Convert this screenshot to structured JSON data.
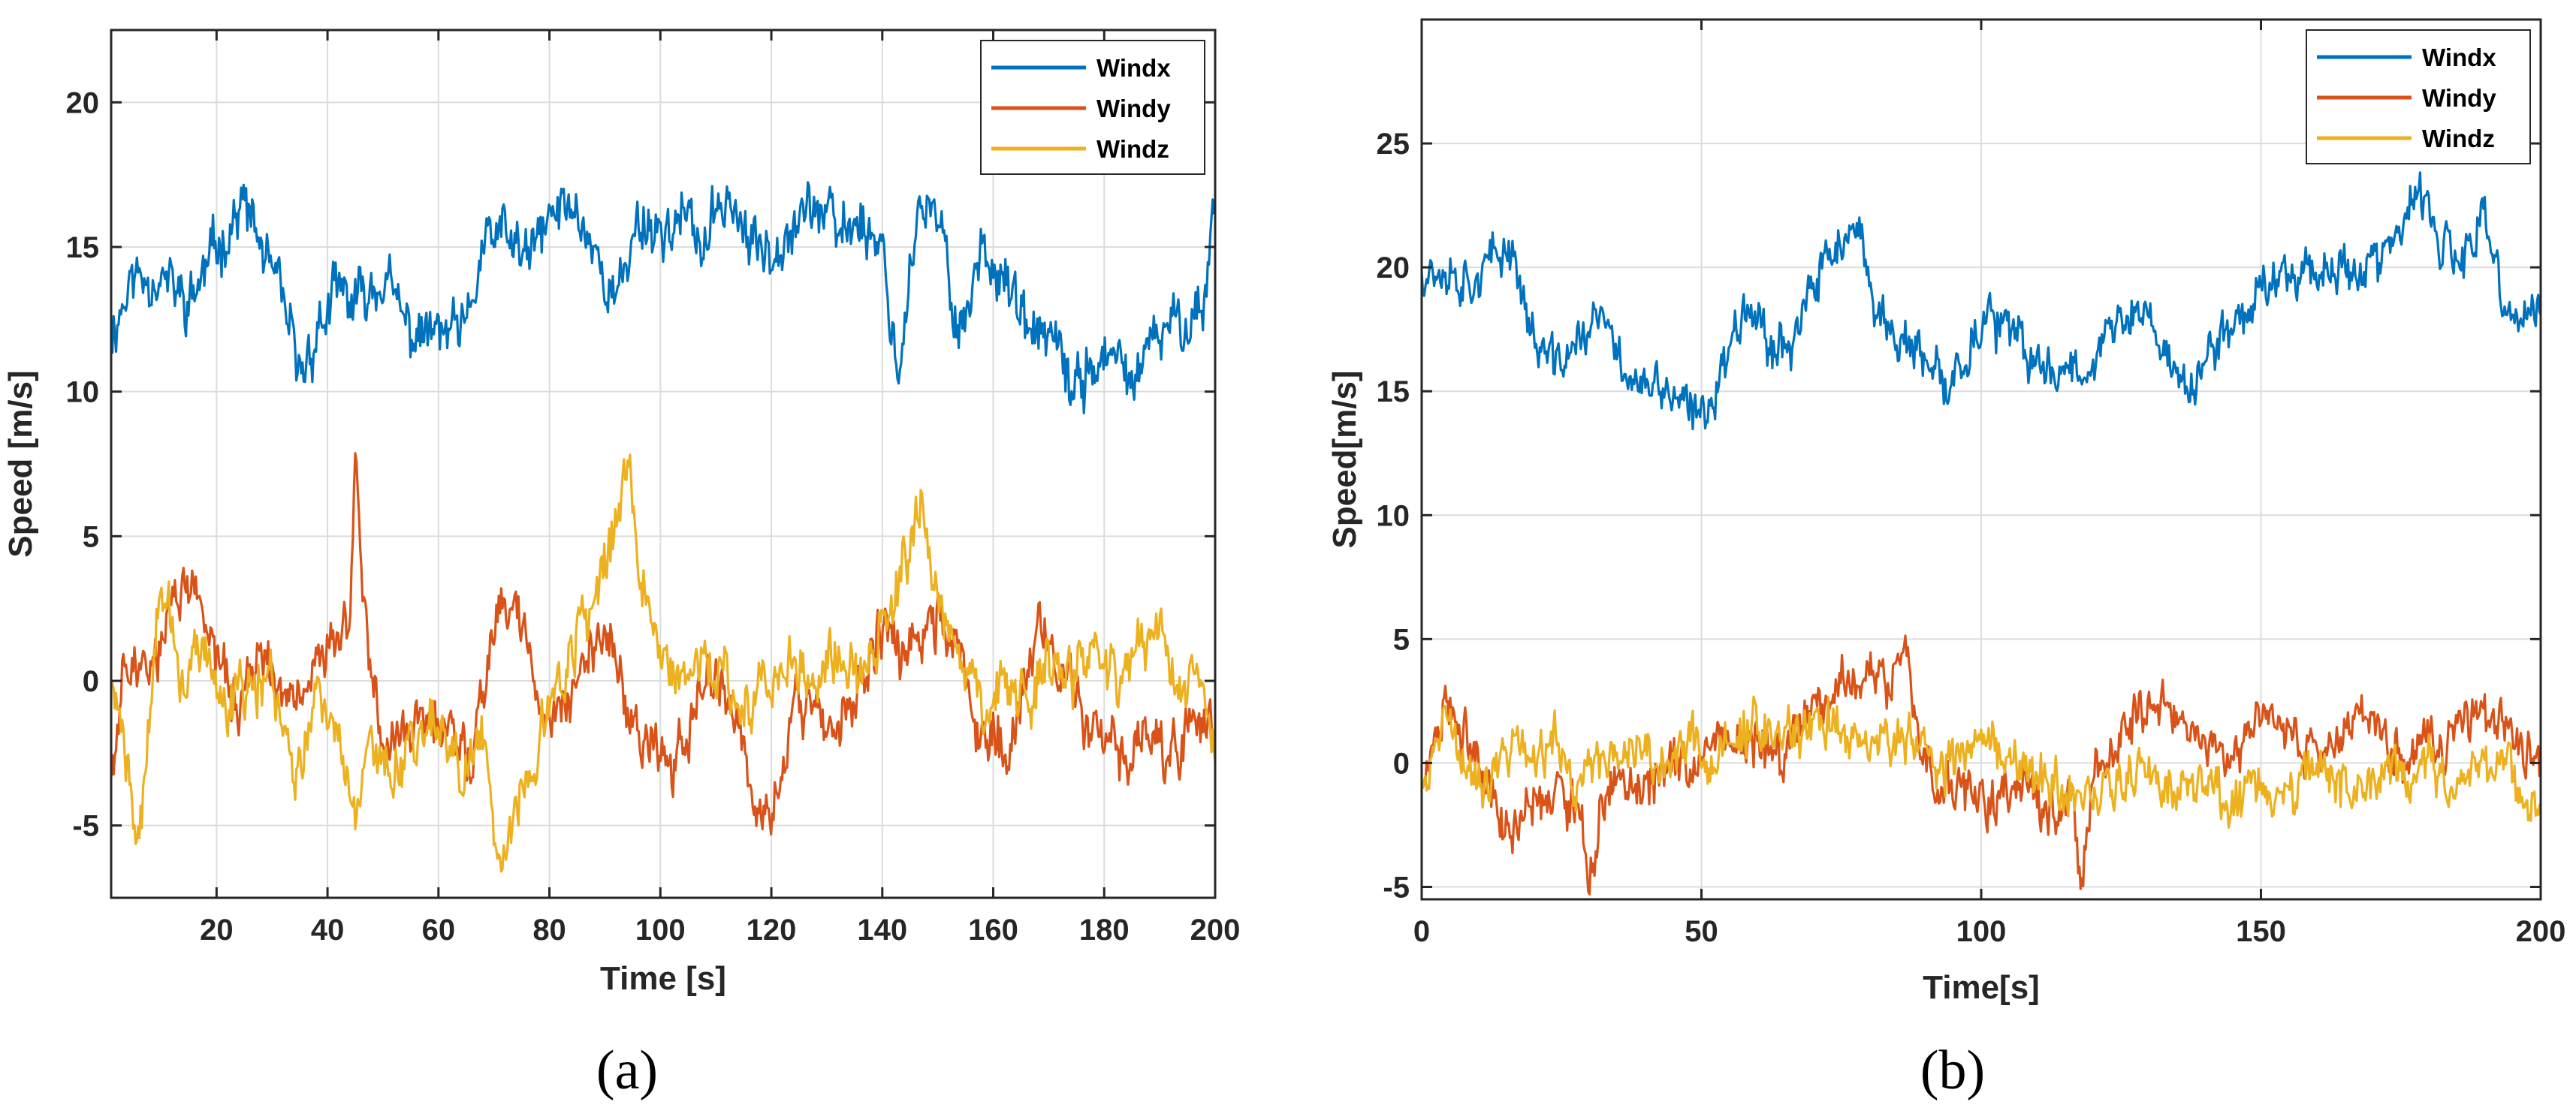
{
  "chart_data": [
    {
      "type": "line",
      "caption": "(a)",
      "xlabel": "Time [s]",
      "ylabel": "Speed [m/s]",
      "xlim": [
        1,
        200
      ],
      "ylim": [
        -7.5,
        22.5
      ],
      "xticks": [
        20,
        40,
        60,
        80,
        100,
        120,
        140,
        160,
        180,
        200
      ],
      "xtick_labels": [
        "20",
        "40",
        "60",
        "80",
        "100",
        "120",
        "140",
        "160",
        "180",
        "200"
      ],
      "yticks": [
        -5,
        0,
        5,
        10,
        15,
        20
      ],
      "ytick_labels": [
        "-5",
        "0",
        "5",
        "10",
        "15",
        "20"
      ],
      "grid": true,
      "legend_position": "top-right",
      "series": [
        {
          "name": "Windx",
          "color": "#0072BD",
          "x": [
            1,
            5,
            10,
            15,
            20,
            25,
            28,
            32,
            35,
            38,
            42,
            45,
            50,
            55,
            60,
            65,
            68,
            72,
            76,
            80,
            84,
            88,
            92,
            96,
            100,
            104,
            108,
            112,
            116,
            120,
            124,
            128,
            132,
            136,
            140,
            143,
            146,
            150,
            154,
            158,
            162,
            166,
            170,
            174,
            178,
            182,
            186,
            190,
            194,
            198,
            200
          ],
          "values": [
            12,
            14,
            14,
            13,
            15,
            16.5,
            15,
            13,
            10.5,
            12,
            13.5,
            13,
            14,
            12,
            12,
            12,
            15,
            15.5,
            14.5,
            16,
            16.5,
            15,
            13,
            16,
            15.5,
            16,
            15,
            17,
            15,
            15,
            16,
            16.5,
            15.5,
            16,
            15,
            10.5,
            16,
            16,
            12,
            15,
            14,
            12,
            12,
            10,
            11,
            11,
            10.5,
            12,
            12.5,
            13,
            17
          ]
        },
        {
          "name": "Windy",
          "color": "#D95319",
          "x": [
            1,
            4,
            8,
            12,
            16,
            20,
            24,
            28,
            32,
            36,
            40,
            44,
            45,
            47,
            50,
            54,
            58,
            62,
            66,
            70,
            74,
            78,
            82,
            86,
            90,
            94,
            98,
            102,
            106,
            110,
            114,
            117,
            120,
            124,
            128,
            132,
            136,
            140,
            144,
            148,
            152,
            156,
            160,
            164,
            168,
            172,
            176,
            180,
            184,
            188,
            192,
            196,
            200
          ],
          "values": [
            -3,
            1,
            0,
            3,
            3,
            1,
            -1,
            1,
            -1,
            0,
            1,
            2,
            7.5,
            2,
            -3,
            -2,
            -1,
            -2,
            -3,
            2,
            3,
            -1,
            -1,
            0,
            2,
            -1,
            -2,
            -3,
            -1,
            0,
            -1,
            -5,
            -5,
            -1,
            -1,
            -2,
            0,
            2,
            1,
            2,
            2,
            -1,
            -2,
            -2,
            2,
            0,
            -1,
            -2,
            -3,
            -2,
            -3,
            -1,
            -2
          ]
        },
        {
          "name": "Windz",
          "color": "#EDB120",
          "x": [
            1,
            4,
            6,
            10,
            14,
            18,
            22,
            26,
            30,
            34,
            38,
            42,
            45,
            48,
            52,
            56,
            60,
            64,
            68,
            70,
            72,
            76,
            80,
            84,
            88,
            92,
            94,
            96,
            100,
            104,
            108,
            112,
            116,
            120,
            124,
            128,
            132,
            136,
            140,
            144,
            147,
            150,
            154,
            158,
            162,
            166,
            170,
            174,
            178,
            182,
            186,
            190,
            194,
            198,
            200
          ],
          "values": [
            0,
            -3,
            -6,
            4,
            0,
            1,
            -1,
            0,
            0,
            -3,
            -1,
            -2,
            -5,
            -2,
            -3,
            -2,
            -1,
            -3,
            -2,
            -5,
            -6,
            -3,
            -1,
            1,
            3,
            5,
            8,
            4,
            1,
            0,
            1,
            0,
            -1,
            0,
            1,
            0,
            1,
            0,
            2,
            4,
            6,
            3,
            1,
            -1,
            0,
            -1,
            1,
            0,
            1,
            0,
            1,
            2,
            0,
            0,
            -2
          ]
        }
      ]
    },
    {
      "type": "line",
      "caption": "(b)",
      "xlabel": "Time[s]",
      "ylabel": "Speed[m/s]",
      "xlim": [
        0,
        200
      ],
      "ylim": [
        -5.5,
        30
      ],
      "xticks": [
        0,
        50,
        100,
        150,
        200
      ],
      "xtick_labels": [
        "0",
        "50",
        "100",
        "150",
        "200"
      ],
      "yticks": [
        -5,
        0,
        5,
        10,
        15,
        20,
        25
      ],
      "ytick_labels": [
        "-5",
        "0",
        "5",
        "10",
        "15",
        "20",
        "25"
      ],
      "grid": true,
      "legend_position": "top-right",
      "series": [
        {
          "name": "Windx",
          "color": "#0072BD",
          "x": [
            0,
            4,
            8,
            12,
            16,
            20,
            24,
            28,
            32,
            36,
            40,
            44,
            48,
            50,
            54,
            58,
            62,
            66,
            70,
            74,
            78,
            82,
            86,
            90,
            94,
            98,
            102,
            106,
            110,
            114,
            118,
            122,
            126,
            130,
            134,
            138,
            142,
            146,
            150,
            154,
            158,
            162,
            166,
            170,
            174,
            178,
            182,
            186,
            190,
            194,
            198,
            200
          ],
          "values": [
            20,
            20,
            19.5,
            20,
            21,
            17,
            16,
            17,
            18,
            16,
            15,
            15,
            14,
            14,
            16,
            19,
            17,
            17,
            19,
            21,
            21,
            18,
            17,
            16,
            15,
            17,
            18,
            17,
            16,
            16,
            16,
            17,
            18,
            18,
            16,
            15,
            17,
            18,
            19,
            20,
            20,
            20,
            20,
            20,
            21,
            23,
            21,
            20,
            22,
            18,
            18,
            18
          ]
        },
        {
          "name": "Windy",
          "color": "#D95319",
          "x": [
            0,
            4,
            8,
            12,
            16,
            20,
            24,
            28,
            30,
            32,
            36,
            40,
            44,
            48,
            52,
            56,
            60,
            64,
            68,
            72,
            76,
            80,
            84,
            86,
            88,
            92,
            96,
            100,
            104,
            108,
            112,
            116,
            118,
            120,
            124,
            128,
            132,
            136,
            140,
            144,
            148,
            152,
            156,
            160,
            164,
            168,
            172,
            176,
            180,
            184,
            188,
            192,
            196,
            200
          ],
          "values": [
            -1,
            2,
            1,
            -1,
            -3,
            -2,
            -1,
            -2,
            -5,
            -2,
            -1,
            -1,
            0,
            0,
            1,
            1,
            1,
            0,
            2,
            3,
            3,
            4,
            3,
            6,
            2,
            -1,
            -1,
            -2,
            -1,
            -1,
            -2,
            -1,
            -5,
            -1,
            1,
            2,
            2,
            1,
            1,
            0,
            1,
            2,
            1,
            0,
            1,
            2,
            1,
            0,
            1,
            1,
            2,
            2,
            1,
            0
          ]
        },
        {
          "name": "Windz",
          "color": "#EDB120",
          "x": [
            0,
            4,
            8,
            12,
            16,
            20,
            24,
            28,
            32,
            36,
            40,
            44,
            48,
            52,
            56,
            60,
            64,
            68,
            72,
            76,
            80,
            84,
            88,
            92,
            96,
            100,
            104,
            108,
            112,
            116,
            120,
            124,
            128,
            132,
            136,
            140,
            144,
            148,
            152,
            156,
            160,
            164,
            168,
            172,
            176,
            180,
            184,
            188,
            192,
            196,
            200
          ],
          "values": [
            -1,
            2,
            0,
            -1,
            1,
            0,
            1,
            -1,
            0,
            1,
            0,
            0,
            1,
            0,
            1,
            2,
            1,
            1,
            2,
            1,
            1,
            1,
            1,
            0,
            0,
            1,
            0,
            0,
            -1,
            -1,
            -1,
            -1,
            0,
            -1,
            -1,
            -1,
            -2,
            -1,
            -1,
            -1,
            0,
            -1,
            -1,
            0,
            -1,
            0,
            -1,
            0,
            0,
            -1,
            -1
          ]
        }
      ]
    }
  ]
}
